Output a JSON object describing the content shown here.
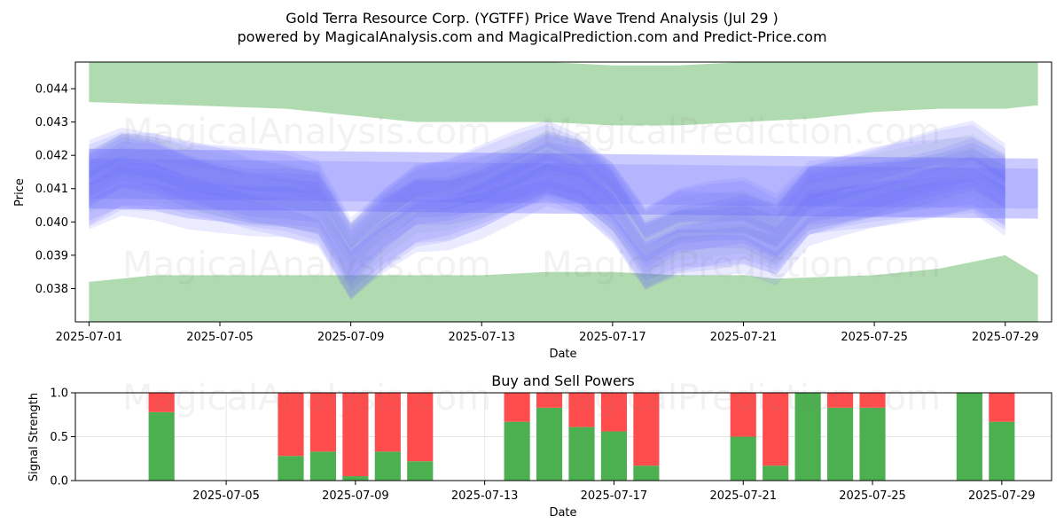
{
  "title": "Gold Terra Resource Corp. (YGTFF) Price Wave Trend Analysis (Jul 29 )",
  "subtitle": "powered by MagicalAnalysis.com and MagicalPrediction.com and Predict-Price.com",
  "watermarks": [
    "MagicalAnalysis.com",
    "MagicalPrediction.com"
  ],
  "colors": {
    "band_green": "#8fcc8f",
    "band_blue": "#6666ff",
    "buy": "#4caf50",
    "sell": "#ff4c4c"
  },
  "chart_data": [
    {
      "type": "area",
      "xlabel": "Date",
      "ylabel": "Price",
      "xlim": [
        "2025-06-30T14:00",
        "2025-07-30T10:00"
      ],
      "ylim": [
        0.037,
        0.0448
      ],
      "x_ticks": [
        "2025-07-01",
        "2025-07-05",
        "2025-07-09",
        "2025-07-13",
        "2025-07-17",
        "2025-07-21",
        "2025-07-25",
        "2025-07-29"
      ],
      "y_ticks": [
        0.038,
        0.039,
        0.04,
        0.041,
        0.042,
        0.043,
        0.044
      ],
      "grid": false,
      "series": [
        {
          "role": "upper-envelope",
          "x": [
            "2025-07-01",
            "2025-07-04",
            "2025-07-07",
            "2025-07-08",
            "2025-07-09",
            "2025-07-11",
            "2025-07-13",
            "2025-07-15",
            "2025-07-17",
            "2025-07-19",
            "2025-07-21",
            "2025-07-23",
            "2025-07-25",
            "2025-07-27",
            "2025-07-29",
            "2025-07-30"
          ],
          "upper": [
            0.0448,
            0.0448,
            0.0448,
            0.0448,
            0.0448,
            0.0448,
            0.0448,
            0.0448,
            0.0447,
            0.0447,
            0.0448,
            0.0448,
            0.0448,
            0.0448,
            0.0448,
            0.0448
          ],
          "lower": [
            0.0436,
            0.0435,
            0.0434,
            0.0433,
            0.0432,
            0.043,
            0.043,
            0.043,
            0.0429,
            0.0429,
            0.043,
            0.0431,
            0.0433,
            0.0434,
            0.0434,
            0.0435
          ]
        },
        {
          "role": "lower-envelope",
          "x": [
            "2025-07-01",
            "2025-07-03",
            "2025-07-06",
            "2025-07-09",
            "2025-07-11",
            "2025-07-13",
            "2025-07-15",
            "2025-07-17",
            "2025-07-19",
            "2025-07-21",
            "2025-07-22",
            "2025-07-25",
            "2025-07-27",
            "2025-07-29",
            "2025-07-30"
          ],
          "upper": [
            0.0382,
            0.0384,
            0.0384,
            0.0384,
            0.0384,
            0.0384,
            0.0385,
            0.0385,
            0.0384,
            0.0384,
            0.0383,
            0.0384,
            0.0386,
            0.039,
            0.0384
          ],
          "lower": [
            0.037,
            0.037,
            0.037,
            0.037,
            0.037,
            0.037,
            0.037,
            0.037,
            0.037,
            0.037,
            0.037,
            0.037,
            0.037,
            0.037,
            0.037
          ]
        },
        {
          "role": "price-wave",
          "x": [
            "2025-07-01",
            "2025-07-02",
            "2025-07-03",
            "2025-07-04",
            "2025-07-05",
            "2025-07-06",
            "2025-07-07",
            "2025-07-08",
            "2025-07-09",
            "2025-07-10",
            "2025-07-11",
            "2025-07-12",
            "2025-07-13",
            "2025-07-14",
            "2025-07-15",
            "2025-07-16",
            "2025-07-17",
            "2025-07-18",
            "2025-07-19",
            "2025-07-20",
            "2025-07-21",
            "2025-07-22",
            "2025-07-23",
            "2025-07-24",
            "2025-07-25",
            "2025-07-26",
            "2025-07-27",
            "2025-07-28",
            "2025-07-29"
          ],
          "values": [
            0.0411,
            0.0416,
            0.0415,
            0.0412,
            0.041,
            0.0408,
            0.0407,
            0.0405,
            0.0389,
            0.0398,
            0.0405,
            0.0406,
            0.0409,
            0.0413,
            0.0417,
            0.0414,
            0.0406,
            0.0392,
            0.0397,
            0.0398,
            0.0399,
            0.0395,
            0.0406,
            0.0408,
            0.041,
            0.0412,
            0.0414,
            0.0416,
            0.041
          ]
        },
        {
          "role": "mean-band",
          "x": [
            "2025-07-01",
            "2025-07-30"
          ],
          "upper": [
            0.0422,
            0.0419
          ],
          "lower": [
            0.0404,
            0.0401
          ]
        }
      ]
    },
    {
      "type": "bar",
      "title": "Buy and Sell Powers",
      "xlabel": "Date",
      "ylabel": "Signal Strength",
      "ylim": [
        0.0,
        1.0
      ],
      "y_ticks": [
        "0.0",
        "0.5",
        "1.0"
      ],
      "x_ticks": [
        "2025-07-05",
        "2025-07-09",
        "2025-07-13",
        "2025-07-17",
        "2025-07-21",
        "2025-07-25",
        "2025-07-29"
      ],
      "grid": true,
      "series": [
        {
          "name": "buy",
          "x": [
            "2025-07-03",
            "2025-07-07",
            "2025-07-08",
            "2025-07-09",
            "2025-07-10",
            "2025-07-11",
            "2025-07-14",
            "2025-07-15",
            "2025-07-16",
            "2025-07-17",
            "2025-07-18",
            "2025-07-21",
            "2025-07-22",
            "2025-07-23",
            "2025-07-24",
            "2025-07-25",
            "2025-07-28",
            "2025-07-29"
          ],
          "values": [
            0.78,
            0.28,
            0.33,
            0.05,
            0.33,
            0.22,
            0.67,
            0.83,
            0.61,
            0.56,
            0.17,
            0.5,
            0.17,
            1.0,
            0.83,
            0.83,
            1.0,
            0.67
          ]
        },
        {
          "name": "sell",
          "values": [
            0.22,
            0.72,
            0.67,
            0.95,
            0.67,
            0.78,
            0.33,
            0.17,
            0.39,
            0.44,
            0.83,
            0.5,
            0.83,
            0.0,
            0.17,
            0.17,
            0.0,
            0.33
          ]
        }
      ]
    }
  ]
}
